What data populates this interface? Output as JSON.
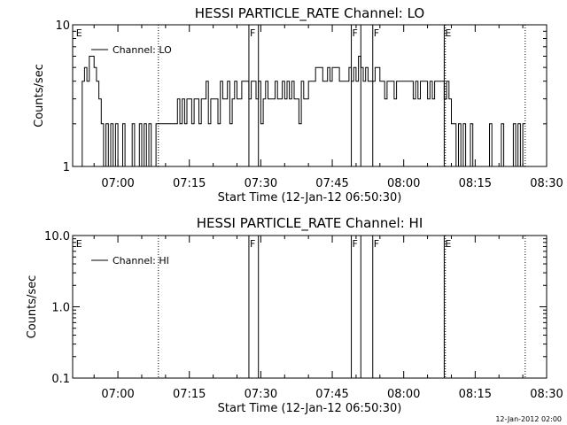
{
  "footer_timestamp": "12-Jan-2012 02:00",
  "chart_data": [
    {
      "type": "line",
      "title": "HESSI PARTICLE_RATE Channel: LO",
      "xlabel": "Start Time (12-Jan-12 06:50:30)",
      "ylabel": "Counts/sec",
      "yscale": "log",
      "ylim": [
        1,
        10
      ],
      "yticks": [
        {
          "value": 1,
          "label": "1"
        },
        {
          "value": 10,
          "label": "10"
        }
      ],
      "xlim": [
        "06:50:30",
        "08:30:00"
      ],
      "xticks": [
        "07:00",
        "07:15",
        "07:30",
        "07:45",
        "08:00",
        "08:15",
        "08:30"
      ],
      "legend": "Channel: LO",
      "legend_location": "upper-left",
      "series": [
        {
          "name": "Channel: LO",
          "x": [
            "06:51:00",
            "06:52:30",
            "06:53:00",
            "06:53:30",
            "06:54:00",
            "06:54:30",
            "06:55:00",
            "06:55:30",
            "06:56:00",
            "06:56:30",
            "06:57:00",
            "06:57:30",
            "06:58:00",
            "06:58:30",
            "06:59:00",
            "06:59:30",
            "07:00:00",
            "07:00:30",
            "07:01:00",
            "07:01:30",
            "07:02:00",
            "07:02:30",
            "07:03:00",
            "07:03:30",
            "07:04:00",
            "07:04:30",
            "07:05:00",
            "07:05:30",
            "07:06:00",
            "07:06:30",
            "07:07:00",
            "07:07:30",
            "07:08:00",
            "07:08:30",
            "07:09:00",
            "07:09:30",
            "07:12:00",
            "07:12:30",
            "07:13:00",
            "07:13:30",
            "07:14:00",
            "07:14:30",
            "07:15:00",
            "07:15:30",
            "07:16:00",
            "07:16:30",
            "07:17:00",
            "07:17:30",
            "07:18:00",
            "07:18:30",
            "07:19:00",
            "07:19:30",
            "07:20:00",
            "07:20:30",
            "07:21:00",
            "07:21:30",
            "07:22:00",
            "07:22:30",
            "07:23:00",
            "07:23:30",
            "07:24:00",
            "07:24:30",
            "07:25:00",
            "07:25:30",
            "07:26:00",
            "07:26:30",
            "07:27:00",
            "07:27:30",
            "07:28:00",
            "07:28:30",
            "07:29:00",
            "07:29:30",
            "07:30:00",
            "07:30:30",
            "07:31:00",
            "07:31:30",
            "07:32:00",
            "07:32:30",
            "07:33:00",
            "07:33:30",
            "07:34:00",
            "07:34:30",
            "07:35:00",
            "07:35:30",
            "07:36:00",
            "07:36:30",
            "07:37:00",
            "07:37:30",
            "07:38:00",
            "07:38:30",
            "07:39:00",
            "07:39:30",
            "07:40:00",
            "07:40:30",
            "07:41:00",
            "07:41:30",
            "07:42:00",
            "07:42:30",
            "07:43:00",
            "07:43:30",
            "07:44:00",
            "07:44:30",
            "07:45:00",
            "07:45:30",
            "07:46:00",
            "07:46:30",
            "07:47:00",
            "07:47:30",
            "07:48:00",
            "07:48:30",
            "07:49:00",
            "07:49:30",
            "07:50:00",
            "07:50:30",
            "07:51:00",
            "07:51:30",
            "07:52:00",
            "07:52:30",
            "07:53:00",
            "07:53:30",
            "07:54:00",
            "07:54:30",
            "07:55:00",
            "07:55:30",
            "07:56:00",
            "07:56:30",
            "07:57:00",
            "07:57:30",
            "07:58:00",
            "07:58:30",
            "07:59:00",
            "07:59:30",
            "08:00:00",
            "08:00:30",
            "08:01:00",
            "08:01:30",
            "08:02:00",
            "08:02:30",
            "08:03:00",
            "08:03:30",
            "08:04:00",
            "08:04:30",
            "08:05:00",
            "08:05:30",
            "08:06:00",
            "08:06:30",
            "08:07:00",
            "08:07:30",
            "08:08:00",
            "08:08:30",
            "08:09:00",
            "08:09:30",
            "08:10:00",
            "08:10:30",
            "08:11:00",
            "08:11:30",
            "08:12:00",
            "08:12:30",
            "08:13:00",
            "08:13:30",
            "08:14:00",
            "08:14:30",
            "08:15:00",
            "08:15:30",
            "08:16:00",
            "08:16:30",
            "08:17:00",
            "08:17:30",
            "08:18:00",
            "08:18:30",
            "08:19:00",
            "08:19:30",
            "08:20:00",
            "08:20:30",
            "08:21:00",
            "08:21:30",
            "08:22:00",
            "08:22:30",
            "08:23:00",
            "08:23:30",
            "08:24:00",
            "08:24:30",
            "08:25:00",
            "08:25:30"
          ],
          "y": [
            1,
            4,
            5,
            4,
            6,
            6,
            5,
            4,
            3,
            2,
            1,
            2,
            1,
            2,
            1,
            2,
            1,
            1,
            2,
            1,
            1,
            1,
            2,
            1,
            1,
            2,
            1,
            2,
            1,
            2,
            1,
            1,
            2,
            2,
            2,
            2,
            2,
            3,
            2,
            3,
            2,
            3,
            3,
            2,
            3,
            3,
            2,
            3,
            3,
            4,
            2,
            3,
            3,
            3,
            2,
            4,
            3,
            3,
            4,
            2,
            3,
            4,
            3,
            3,
            4,
            4,
            4,
            3,
            4,
            4,
            3,
            4,
            2,
            3,
            4,
            3,
            3,
            3,
            4,
            3,
            3,
            4,
            3,
            4,
            3,
            4,
            3,
            3,
            2,
            4,
            3,
            3,
            4,
            4,
            4,
            5,
            5,
            5,
            4,
            4,
            5,
            4,
            5,
            5,
            5,
            4,
            4,
            4,
            4,
            5,
            4,
            5,
            4,
            6,
            5,
            4,
            5,
            4,
            4,
            4,
            5,
            5,
            4,
            4,
            3,
            4,
            4,
            4,
            3,
            4,
            4,
            4,
            4,
            4,
            4,
            4,
            3,
            4,
            3,
            4,
            4,
            4,
            3,
            4,
            3,
            4,
            4,
            4,
            4,
            3,
            4,
            3,
            2,
            2,
            1,
            2,
            1,
            2,
            1,
            1,
            2,
            1,
            1,
            1,
            1,
            1,
            1,
            1,
            2,
            1,
            1,
            1,
            1,
            2,
            1,
            1,
            1,
            1,
            2,
            1,
            2,
            1,
            2,
            2
          ]
        }
      ],
      "flag_markers": [
        {
          "time": "06:51:00",
          "label": "E",
          "line": "none"
        },
        {
          "time": "07:08:30",
          "label": "",
          "line": "dotted"
        },
        {
          "time": "07:27:30",
          "label": "F",
          "line": "solid"
        },
        {
          "time": "07:29:30",
          "label": "",
          "line": "solid"
        },
        {
          "time": "07:49:00",
          "label": "F",
          "line": "solid"
        },
        {
          "time": "07:51:00",
          "label": "",
          "line": "solid"
        },
        {
          "time": "07:53:30",
          "label": "F",
          "line": "solid"
        },
        {
          "time": "08:08:30",
          "label": "E",
          "line": "solid"
        },
        {
          "time": "08:08:45",
          "label": "",
          "line": "dotted"
        },
        {
          "time": "08:25:30",
          "label": "",
          "line": "dotted"
        }
      ]
    },
    {
      "type": "line",
      "title": "HESSI PARTICLE_RATE Channel: HI",
      "xlabel": "Start Time (12-Jan-12 06:50:30)",
      "ylabel": "Counts/sec",
      "yscale": "log",
      "ylim": [
        0.1,
        10
      ],
      "yticks": [
        {
          "value": 0.1,
          "label": "0.1"
        },
        {
          "value": 1,
          "label": "1.0"
        },
        {
          "value": 10,
          "label": "10.0"
        }
      ],
      "xlim": [
        "06:50:30",
        "08:30:00"
      ],
      "xticks": [
        "07:00",
        "07:15",
        "07:30",
        "07:45",
        "08:00",
        "08:15",
        "08:30"
      ],
      "legend": "Channel: HI",
      "legend_location": "upper-left",
      "series": [
        {
          "name": "Channel: HI",
          "x": [],
          "y": []
        }
      ],
      "flag_markers": [
        {
          "time": "06:51:00",
          "label": "E",
          "line": "none"
        },
        {
          "time": "07:08:30",
          "label": "",
          "line": "dotted"
        },
        {
          "time": "07:27:30",
          "label": "F",
          "line": "solid"
        },
        {
          "time": "07:29:30",
          "label": "",
          "line": "solid"
        },
        {
          "time": "07:49:00",
          "label": "F",
          "line": "solid"
        },
        {
          "time": "07:51:00",
          "label": "",
          "line": "solid"
        },
        {
          "time": "07:53:30",
          "label": "F",
          "line": "solid"
        },
        {
          "time": "08:08:30",
          "label": "E",
          "line": "solid"
        },
        {
          "time": "08:08:45",
          "label": "",
          "line": "dotted"
        },
        {
          "time": "08:25:30",
          "label": "",
          "line": "dotted"
        }
      ]
    }
  ]
}
